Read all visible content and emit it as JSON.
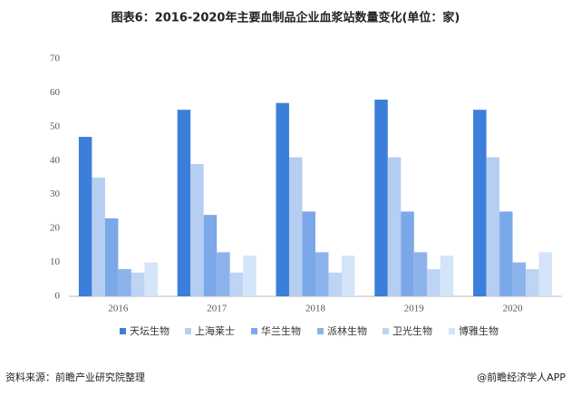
{
  "chart_data": {
    "type": "bar",
    "title": "图表6：2016-2020年主要血制品企业血浆站数量变化(单位：家)",
    "categories": [
      "2016",
      "2017",
      "2018",
      "2019",
      "2020"
    ],
    "series": [
      {
        "name": "天坛生物",
        "color": "#3c7fda",
        "values": [
          47,
          55,
          57,
          58,
          55
        ]
      },
      {
        "name": "上海莱士",
        "color": "#b5cef1",
        "values": [
          35,
          39,
          41,
          41,
          41
        ]
      },
      {
        "name": "华兰生物",
        "color": "#7ba8e8",
        "values": [
          23,
          24,
          25,
          25,
          25
        ]
      },
      {
        "name": "派林生物",
        "color": "#8db3ec",
        "values": [
          8,
          13,
          13,
          13,
          10
        ]
      },
      {
        "name": "卫光生物",
        "color": "#bdd4f4",
        "values": [
          7,
          7,
          7,
          8,
          8
        ]
      },
      {
        "name": "博雅生物",
        "color": "#d4e4f9",
        "values": [
          10,
          12,
          12,
          12,
          13
        ]
      }
    ],
    "ylim": [
      0,
      70
    ],
    "yticks": [
      0,
      10,
      20,
      30,
      40,
      50,
      60,
      70
    ],
    "source": "资料来源：前瞻产业研究院整理",
    "credit": "@前瞻经济学人APP"
  }
}
